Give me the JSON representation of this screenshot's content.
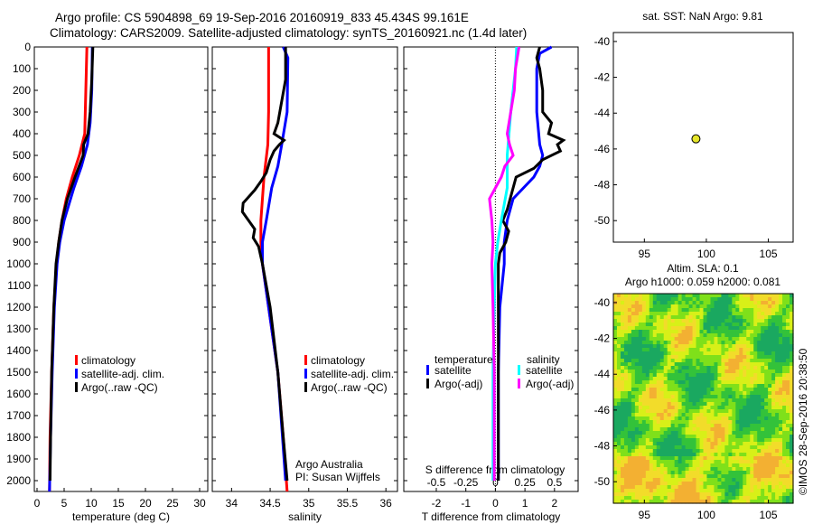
{
  "header": {
    "line1": "Argo profile: CS 5904898_69 19-Sep-2016 20160919_833 45.434S 99.161E",
    "line2": "Climatology: CARS2009. Satellite-adjusted climatology: synTS_20160921.nc (1.4d later)"
  },
  "credit": "©IMOS 28-Sep-2016 20:38:50",
  "chart_data": [
    {
      "type": "line",
      "name": "temperature",
      "xlabel": "temperature (deg C)",
      "xlim": [
        -0.5,
        31.5
      ],
      "ylim": [
        2050,
        0
      ],
      "xticks": [
        0,
        5,
        10,
        15,
        20,
        25,
        30
      ],
      "yticks": [
        0,
        100,
        200,
        300,
        400,
        500,
        600,
        700,
        800,
        900,
        1000,
        1100,
        1200,
        1300,
        1400,
        1500,
        1600,
        1700,
        1800,
        1900,
        2000
      ],
      "legend": [
        "climatology",
        "satellite-adj. clim.",
        "Argo(..raw -QC)"
      ],
      "series": [
        {
          "name": "climatology",
          "color": "#ff0000",
          "depth": [
            0,
            200,
            400,
            500,
            600,
            700,
            800,
            900,
            1000,
            1200,
            1500,
            1800,
            2050
          ],
          "values": [
            9.2,
            9.0,
            8.8,
            7.8,
            6.5,
            5.4,
            4.6,
            4.0,
            3.6,
            3.1,
            2.7,
            2.4,
            2.3
          ]
        },
        {
          "name": "satellite-adj. clim.",
          "color": "#0000ff",
          "depth": [
            0,
            200,
            350,
            450,
            550,
            650,
            800,
            900,
            1000,
            1200,
            1500,
            1800,
            2050
          ],
          "values": [
            10.2,
            10.1,
            9.8,
            9.3,
            8.2,
            6.8,
            5.0,
            4.2,
            3.7,
            3.2,
            2.8,
            2.5,
            2.3
          ]
        },
        {
          "name": "Argo(..raw -QC)",
          "color": "#000000",
          "depth": [
            0,
            150,
            300,
            400,
            450,
            500,
            600,
            700,
            800,
            900,
            1000,
            1200,
            1500,
            1800,
            2000
          ],
          "values": [
            10.3,
            10.1,
            9.8,
            9.4,
            8.6,
            8.5,
            7.0,
            5.6,
            4.6,
            4.0,
            3.5,
            3.1,
            2.7,
            2.5,
            2.4
          ]
        }
      ]
    },
    {
      "type": "line",
      "name": "salinity",
      "xlabel": "salinity",
      "xlim": [
        33.75,
        36.15
      ],
      "ylim": [
        2050,
        0
      ],
      "xticks": [
        34,
        34.5,
        35,
        35.5,
        36
      ],
      "legend": [
        "climatology",
        "satellite-adj. clim.",
        "Argo(..raw -QC)"
      ],
      "annotation": [
        "Argo Australia",
        "PI: Susan Wijffels"
      ],
      "series": [
        {
          "name": "climatology",
          "color": "#ff0000",
          "depth": [
            0,
            300,
            450,
            600,
            800,
            900,
            1000,
            1200,
            1500,
            1800,
            2050
          ],
          "values": [
            34.48,
            34.48,
            34.47,
            34.42,
            34.38,
            34.38,
            34.4,
            34.48,
            34.6,
            34.67,
            34.72
          ]
        },
        {
          "name": "satellite-adj. clim.",
          "color": "#0000ff",
          "depth": [
            0,
            50,
            300,
            450,
            550,
            650,
            800,
            900,
            1000,
            1200,
            1500,
            1800,
            2000
          ],
          "values": [
            34.67,
            34.73,
            34.72,
            34.65,
            34.6,
            34.52,
            34.45,
            34.4,
            34.4,
            34.48,
            34.6,
            34.66,
            34.7
          ]
        },
        {
          "name": "Argo(..raw -QC)",
          "color": "#000000",
          "depth": [
            0,
            150,
            350,
            400,
            430,
            450,
            480,
            520,
            580,
            620,
            660,
            700,
            720,
            760,
            800,
            840,
            880,
            920,
            1000,
            1200,
            1500,
            1800,
            2000
          ],
          "values": [
            34.7,
            34.7,
            34.6,
            34.55,
            34.68,
            34.62,
            34.55,
            34.5,
            34.45,
            34.38,
            34.3,
            34.2,
            34.15,
            34.14,
            34.22,
            34.3,
            34.28,
            34.35,
            34.4,
            34.5,
            34.6,
            34.67,
            34.72
          ]
        }
      ]
    },
    {
      "type": "line",
      "name": "difference",
      "xlabel": "T difference from climatology",
      "x2label": "S difference from climatology",
      "xlim": [
        -3.1,
        2.8
      ],
      "ylim": [
        2050,
        0
      ],
      "xticks": [
        -2,
        -1,
        0,
        1,
        2
      ],
      "x2ticks": [
        -0.5,
        -0.25,
        0,
        0.25,
        0.5
      ],
      "legend_titles": [
        "temperature",
        "salinity"
      ],
      "legend": [
        "satellite",
        "Argo(-adj)",
        "satellite",
        "Argo(-adj)"
      ],
      "series": [
        {
          "name": "T satellite",
          "color": "#0000ff",
          "unit": "T",
          "depth": [
            0,
            30,
            100,
            300,
            450,
            500,
            550,
            600,
            700,
            800,
            900,
            1000,
            1200,
            1500,
            2000
          ],
          "values": [
            1.9,
            1.5,
            1.4,
            1.4,
            1.5,
            1.6,
            1.5,
            1.3,
            0.6,
            0.4,
            0.3,
            0.3,
            0.15,
            0.1,
            0.1
          ]
        },
        {
          "name": "T Argo(-adj)",
          "color": "#000000",
          "unit": "T",
          "depth": [
            0,
            50,
            100,
            200,
            300,
            350,
            400,
            430,
            450,
            480,
            520,
            560,
            600,
            650,
            700,
            750,
            800,
            850,
            900,
            950,
            1000,
            1200,
            1500,
            2000
          ],
          "values": [
            1.5,
            1.4,
            1.5,
            1.6,
            1.6,
            1.9,
            1.8,
            2.3,
            2.1,
            2.2,
            1.6,
            1.3,
            0.7,
            0.6,
            0.5,
            0.4,
            0.25,
            0.45,
            0.35,
            0.15,
            0.1,
            0.1,
            0.1,
            0.1
          ]
        },
        {
          "name": "S satellite",
          "color": "#00ffff",
          "unit": "S",
          "depth": [
            0,
            100,
            300,
            500,
            650,
            800,
            900,
            1000,
            1200,
            1500,
            2000
          ],
          "values": [
            0.18,
            0.17,
            0.13,
            0.1,
            0.1,
            0.05,
            0.02,
            0.0,
            -0.01,
            -0.02,
            -0.02
          ]
        },
        {
          "name": "S Argo(-adj)",
          "color": "#ff00ff",
          "unit": "S",
          "depth": [
            0,
            100,
            200,
            300,
            400,
            450,
            500,
            550,
            600,
            650,
            700,
            750,
            800,
            900,
            1000,
            1200,
            1500,
            2000
          ],
          "values": [
            0.2,
            0.17,
            0.16,
            0.13,
            0.1,
            0.12,
            0.15,
            0.08,
            0.05,
            0.0,
            -0.05,
            -0.04,
            -0.03,
            -0.02,
            -0.03,
            -0.02,
            -0.01,
            -0.01
          ]
        }
      ]
    },
    {
      "type": "scatter",
      "name": "sst-map",
      "title": "sat. SST: NaN Argo: 9.81",
      "xlim": [
        92.5,
        107
      ],
      "ylim": [
        -51.2,
        -39.5
      ],
      "xticks": [
        95,
        100,
        105
      ],
      "yticks": [
        -40,
        -42,
        -44,
        -46,
        -48,
        -50
      ],
      "points": [
        {
          "x": 99.161,
          "y": -45.434,
          "color": "#e6e62a"
        }
      ]
    },
    {
      "type": "heatmap",
      "name": "sla-map",
      "title": [
        "Altim. SLA: 0.1",
        "Argo h1000: 0.059 h2000: 0.081"
      ],
      "xlim": [
        92.5,
        107
      ],
      "ylim": [
        -51.2,
        -39.5
      ],
      "xticks": [
        95,
        100,
        105
      ],
      "yticks": [
        -40,
        -42,
        -44,
        -46,
        -48,
        -50
      ]
    }
  ]
}
